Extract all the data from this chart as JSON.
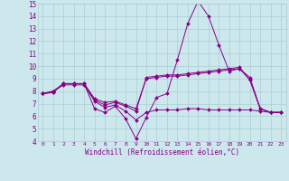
{
  "xlabel": "Windchill (Refroidissement éolien,°C)",
  "xlim": [
    -0.5,
    23.5
  ],
  "ylim": [
    4,
    15
  ],
  "yticks": [
    4,
    5,
    6,
    7,
    8,
    9,
    10,
    11,
    12,
    13,
    14,
    15
  ],
  "xticks": [
    0,
    1,
    2,
    3,
    4,
    5,
    6,
    7,
    8,
    9,
    10,
    11,
    12,
    13,
    14,
    15,
    16,
    17,
    18,
    19,
    20,
    21,
    22,
    23
  ],
  "bg_color": "#cce8ec",
  "grid_color": "#aacdd4",
  "line_color": "#880088",
  "lines": [
    {
      "x": [
        0,
        1,
        2,
        3,
        4,
        5,
        6,
        7,
        8,
        9,
        10,
        11,
        12,
        13,
        14,
        15,
        16,
        17,
        18,
        19,
        20,
        21,
        22,
        23
      ],
      "y": [
        7.8,
        8.0,
        8.6,
        8.6,
        8.6,
        6.6,
        6.3,
        6.8,
        5.8,
        4.2,
        5.9,
        7.5,
        7.8,
        10.5,
        13.4,
        15.2,
        14.0,
        11.7,
        9.6,
        9.8,
        9.1,
        6.6,
        6.3,
        6.3
      ]
    },
    {
      "x": [
        0,
        1,
        2,
        3,
        4,
        5,
        6,
        7,
        8,
        9,
        10,
        11,
        12,
        13,
        14,
        15,
        16,
        17,
        18,
        19,
        20,
        21,
        22,
        23
      ],
      "y": [
        7.8,
        7.9,
        8.6,
        8.6,
        8.6,
        7.3,
        6.9,
        7.1,
        6.8,
        6.4,
        9.1,
        9.2,
        9.3,
        9.3,
        9.4,
        9.5,
        9.6,
        9.7,
        9.8,
        9.9,
        8.9,
        6.6,
        6.3,
        6.3
      ]
    },
    {
      "x": [
        0,
        1,
        2,
        3,
        4,
        5,
        6,
        7,
        8,
        9,
        10,
        11,
        12,
        13,
        14,
        15,
        16,
        17,
        18,
        19,
        20,
        21,
        22,
        23
      ],
      "y": [
        7.8,
        7.9,
        8.6,
        8.6,
        8.6,
        7.4,
        7.1,
        7.2,
        6.9,
        6.6,
        9.0,
        9.1,
        9.2,
        9.2,
        9.3,
        9.4,
        9.5,
        9.6,
        9.7,
        9.8,
        8.9,
        6.6,
        6.3,
        6.3
      ]
    },
    {
      "x": [
        0,
        1,
        2,
        3,
        4,
        5,
        6,
        7,
        8,
        9,
        10,
        11,
        12,
        13,
        14,
        15,
        16,
        17,
        18,
        19,
        20,
        21,
        22,
        23
      ],
      "y": [
        7.8,
        8.0,
        8.5,
        8.5,
        8.5,
        7.2,
        6.7,
        6.9,
        6.4,
        5.7,
        6.3,
        6.5,
        6.5,
        6.5,
        6.6,
        6.6,
        6.5,
        6.5,
        6.5,
        6.5,
        6.5,
        6.4,
        6.3,
        6.3
      ]
    }
  ]
}
